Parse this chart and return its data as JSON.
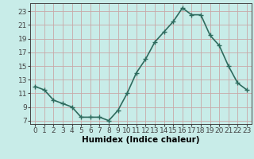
{
  "x": [
    0,
    1,
    2,
    3,
    4,
    5,
    6,
    7,
    8,
    9,
    10,
    11,
    12,
    13,
    14,
    15,
    16,
    17,
    18,
    19,
    20,
    21,
    22,
    23
  ],
  "y": [
    12.0,
    11.5,
    10.0,
    9.5,
    9.0,
    7.5,
    7.5,
    7.5,
    7.0,
    8.5,
    11.0,
    14.0,
    16.0,
    18.5,
    20.0,
    21.5,
    23.5,
    22.5,
    22.5,
    19.5,
    18.0,
    15.0,
    12.5,
    11.5
  ],
  "line_color": "#2e6b5e",
  "marker": "+",
  "marker_size": 4,
  "line_width": 1.2,
  "xlabel": "Humidex (Indice chaleur)",
  "xlabel_fontsize": 7.5,
  "xlim": [
    -0.5,
    23.5
  ],
  "ylim": [
    6.5,
    24.2
  ],
  "yticks": [
    7,
    9,
    11,
    13,
    15,
    17,
    19,
    21,
    23
  ],
  "xtick_labels": [
    "0",
    "1",
    "2",
    "3",
    "4",
    "5",
    "6",
    "7",
    "8",
    "9",
    "10",
    "11",
    "12",
    "13",
    "14",
    "15",
    "16",
    "17",
    "18",
    "19",
    "20",
    "21",
    "22",
    "23"
  ],
  "grid_color": "#c8a8a8",
  "bg_color": "#c8ece8",
  "tick_fontsize": 6.5,
  "axis_color": "#444444"
}
